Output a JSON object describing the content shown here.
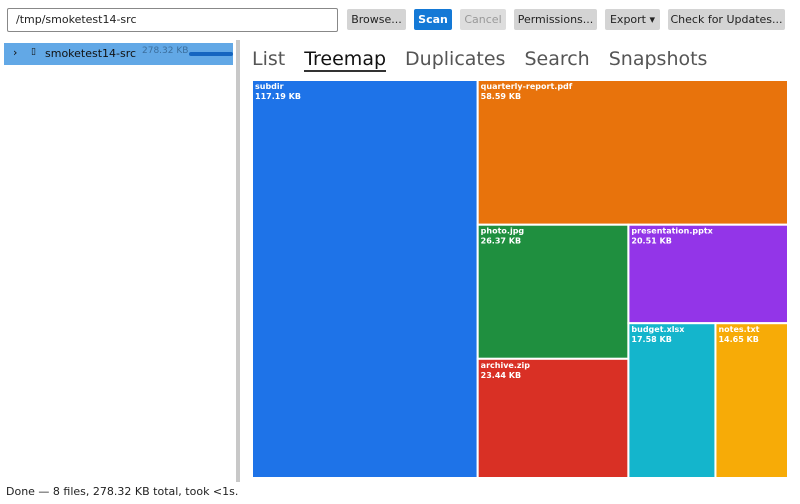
{
  "toolbar": {
    "path": "/tmp/smoketest14-src",
    "buttons": [
      "Browse...",
      "Scan",
      "Cancel",
      "Permissions...",
      "Export ▾",
      "Check for Updates..."
    ]
  },
  "tree": {
    "name": "smoketest14-src",
    "size": "278.32 KB"
  },
  "tabs": [
    "List",
    "Treemap",
    "Duplicates",
    "Search",
    "Snapshots"
  ],
  "chart_data": {
    "type": "treemap",
    "items": [
      {
        "name": "subdir",
        "size": {
          "value": 117.19,
          "label": "117.19 KB"
        },
        "color": "#1e73e8"
      },
      {
        "name": "quarterly-report.pdf",
        "size": {
          "value": 58.59,
          "label": "58.59 KB"
        },
        "color": "#e8730c"
      },
      {
        "name": "photo.jpg",
        "size": {
          "value": 26.37,
          "label": "26.37 KB"
        },
        "color": "#1f8f3f"
      },
      {
        "name": "archive.zip",
        "size": {
          "value": 23.44,
          "label": "23.44 KB"
        },
        "color": "#d93025"
      },
      {
        "name": "presentation.pptx",
        "size": {
          "value": 20.51,
          "label": "20.51 KB"
        },
        "color": "#9335e8"
      },
      {
        "name": "budget.xlsx",
        "size": {
          "value": 17.58,
          "label": "17.58 KB"
        },
        "color": "#14b5cc"
      },
      {
        "name": "notes.txt",
        "size": {
          "value": 14.65,
          "label": "14.65 KB"
        },
        "color": "#f7ab07"
      }
    ]
  },
  "status": "Done — 8 files, 278.32 KB total, took <1s."
}
